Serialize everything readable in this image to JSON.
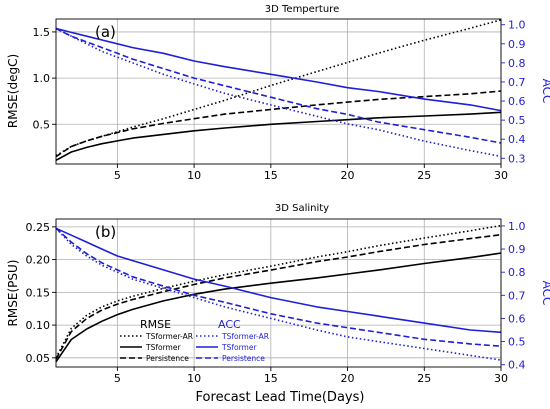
{
  "xlabel": "Forecast Lead Time(Days)",
  "x_ticks": [
    5,
    10,
    15,
    20,
    25,
    30
  ],
  "colors": {
    "rmse": "#000000",
    "acc": "#1f1fd8",
    "grid": "#b0b0b0"
  },
  "legend": {
    "rmse_head": "RMSE",
    "acc_head": "ACC",
    "items": [
      "TSformer-AR",
      "TSformer",
      "Persistence"
    ]
  },
  "chart_data": [
    {
      "type": "line",
      "title": "3D Temperture",
      "panel_label": "(a)",
      "ylabel": "RMSE(degC)",
      "ylabel_right": "ACC",
      "xlim": [
        1,
        30
      ],
      "ylim": [
        0.07,
        1.64
      ],
      "ylim_right": [
        0.27,
        1.03
      ],
      "y_ticks": [
        0.5,
        1.0,
        1.5
      ],
      "y_tick_labels": [
        "0.5",
        "1.0",
        "1.5"
      ],
      "y_ticks_right": [
        0.3,
        0.4,
        0.5,
        0.6,
        0.7,
        0.8,
        0.9,
        1.0
      ],
      "y_tick_labels_right": [
        "0.3",
        "0.4",
        "0.5",
        "0.6",
        "0.7",
        "0.8",
        "0.9",
        "1.0"
      ],
      "grid": true,
      "x": [
        1,
        2,
        3,
        4,
        5,
        6,
        8,
        10,
        12,
        15,
        18,
        20,
        22,
        25,
        28,
        30
      ],
      "series": [
        {
          "name": "TSformer-AR",
          "metric": "RMSE",
          "style": "dotted",
          "values": [
            0.16,
            0.26,
            0.32,
            0.37,
            0.42,
            0.47,
            0.56,
            0.66,
            0.76,
            0.92,
            1.07,
            1.17,
            1.27,
            1.41,
            1.54,
            1.63
          ]
        },
        {
          "name": "TSformer",
          "metric": "RMSE",
          "style": "solid",
          "values": [
            0.11,
            0.2,
            0.25,
            0.29,
            0.32,
            0.35,
            0.39,
            0.43,
            0.46,
            0.5,
            0.53,
            0.55,
            0.57,
            0.59,
            0.61,
            0.63
          ]
        },
        {
          "name": "Persistence",
          "metric": "RMSE",
          "style": "dashed",
          "values": [
            0.15,
            0.26,
            0.32,
            0.37,
            0.41,
            0.45,
            0.51,
            0.56,
            0.61,
            0.66,
            0.71,
            0.74,
            0.77,
            0.8,
            0.83,
            0.86
          ]
        },
        {
          "name": "TSformer-AR",
          "metric": "ACC",
          "style": "dotted",
          "values": [
            0.98,
            0.94,
            0.9,
            0.86,
            0.83,
            0.8,
            0.74,
            0.69,
            0.64,
            0.58,
            0.52,
            0.48,
            0.45,
            0.39,
            0.34,
            0.31
          ]
        },
        {
          "name": "TSformer",
          "metric": "ACC",
          "style": "solid",
          "values": [
            0.98,
            0.96,
            0.94,
            0.92,
            0.9,
            0.88,
            0.85,
            0.81,
            0.78,
            0.74,
            0.7,
            0.67,
            0.65,
            0.61,
            0.58,
            0.55
          ]
        },
        {
          "name": "Persistence",
          "metric": "ACC",
          "style": "dashed",
          "values": [
            0.98,
            0.94,
            0.91,
            0.88,
            0.85,
            0.82,
            0.77,
            0.72,
            0.68,
            0.62,
            0.56,
            0.53,
            0.49,
            0.45,
            0.41,
            0.38
          ]
        }
      ]
    },
    {
      "type": "line",
      "title": "3D Salinity",
      "panel_label": "(b)",
      "ylabel": "RMSE(PSU)",
      "ylabel_right": "ACC",
      "xlim": [
        1,
        30
      ],
      "ylim": [
        0.036,
        0.262
      ],
      "ylim_right": [
        0.39,
        1.03
      ],
      "y_ticks": [
        0.05,
        0.1,
        0.15,
        0.2,
        0.25
      ],
      "y_tick_labels": [
        "0.05",
        "0.10",
        "0.15",
        "0.20",
        "0.25"
      ],
      "y_ticks_right": [
        0.4,
        0.5,
        0.6,
        0.7,
        0.8,
        0.9,
        1.0
      ],
      "y_tick_labels_right": [
        "0.4",
        "0.5",
        "0.6",
        "0.7",
        "0.8",
        "0.9",
        "1.0"
      ],
      "grid": true,
      "x": [
        1,
        2,
        3,
        4,
        5,
        6,
        8,
        10,
        12,
        15,
        18,
        20,
        22,
        25,
        28,
        30
      ],
      "series": [
        {
          "name": "TSformer-AR",
          "metric": "RMSE",
          "style": "dotted",
          "values": [
            0.05,
            0.095,
            0.115,
            0.128,
            0.137,
            0.144,
            0.156,
            0.167,
            0.177,
            0.19,
            0.204,
            0.212,
            0.221,
            0.233,
            0.244,
            0.252
          ]
        },
        {
          "name": "TSformer",
          "metric": "RMSE",
          "style": "solid",
          "values": [
            0.044,
            0.078,
            0.094,
            0.106,
            0.116,
            0.124,
            0.137,
            0.147,
            0.155,
            0.164,
            0.172,
            0.178,
            0.184,
            0.194,
            0.203,
            0.21
          ]
        },
        {
          "name": "Persistence",
          "metric": "RMSE",
          "style": "dashed",
          "values": [
            0.048,
            0.09,
            0.11,
            0.123,
            0.132,
            0.139,
            0.151,
            0.162,
            0.172,
            0.184,
            0.197,
            0.204,
            0.212,
            0.223,
            0.232,
            0.238
          ]
        },
        {
          "name": "TSformer-AR",
          "metric": "ACC",
          "style": "dotted",
          "values": [
            0.99,
            0.92,
            0.87,
            0.83,
            0.8,
            0.77,
            0.73,
            0.69,
            0.65,
            0.6,
            0.55,
            0.52,
            0.5,
            0.47,
            0.44,
            0.42
          ]
        },
        {
          "name": "TSformer",
          "metric": "ACC",
          "style": "solid",
          "values": [
            0.99,
            0.96,
            0.93,
            0.9,
            0.87,
            0.85,
            0.81,
            0.77,
            0.74,
            0.69,
            0.65,
            0.63,
            0.61,
            0.58,
            0.55,
            0.54
          ]
        },
        {
          "name": "Persistence",
          "metric": "ACC",
          "style": "dashed",
          "values": [
            0.99,
            0.93,
            0.88,
            0.84,
            0.81,
            0.78,
            0.74,
            0.7,
            0.67,
            0.62,
            0.58,
            0.56,
            0.54,
            0.51,
            0.49,
            0.48
          ]
        }
      ]
    }
  ]
}
